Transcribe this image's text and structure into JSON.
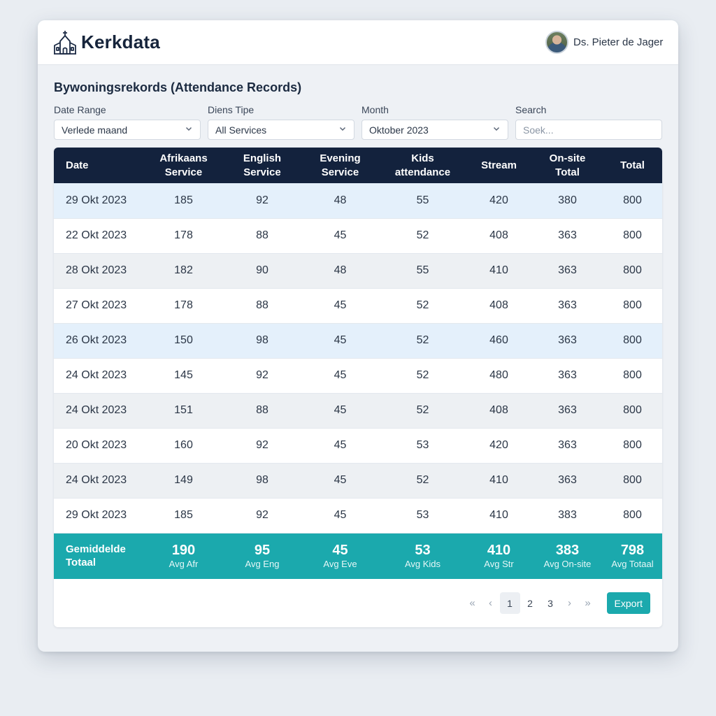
{
  "header": {
    "brand": "Kerkdata",
    "user_name": "Ds. Pieter de Jager"
  },
  "section_title": "Bywoningsrekords (Attendance Records)",
  "filters": {
    "date_range": {
      "label": "Date Range",
      "value": "Verlede maand"
    },
    "service_type": {
      "label": "Diens Tipe",
      "value": "All Services"
    },
    "month": {
      "label": "Month",
      "value": "Oktober 2023"
    },
    "search": {
      "label": "Search",
      "placeholder": "Soek..."
    }
  },
  "table": {
    "columns": [
      [
        "Date"
      ],
      [
        "Afrikaans",
        "Service"
      ],
      [
        "English",
        "Service"
      ],
      [
        "Evening",
        "Service"
      ],
      [
        "Kids",
        "attendance"
      ],
      [
        "Stream"
      ],
      [
        "On-site",
        "Total"
      ],
      [
        "Total"
      ]
    ],
    "rows": [
      {
        "style": "blue",
        "cells": [
          "29 Okt 2023",
          "185",
          "92",
          "48",
          "55",
          "420",
          "380",
          "800"
        ]
      },
      {
        "style": "white",
        "cells": [
          "22 Okt 2023",
          "178",
          "88",
          "45",
          "52",
          "408",
          "363",
          "800"
        ]
      },
      {
        "style": "grey",
        "cells": [
          "28 Okt 2023",
          "182",
          "90",
          "48",
          "55",
          "410",
          "363",
          "800"
        ]
      },
      {
        "style": "white",
        "cells": [
          "27 Okt 2023",
          "178",
          "88",
          "45",
          "52",
          "408",
          "363",
          "800"
        ]
      },
      {
        "style": "blue",
        "cells": [
          "26 Okt 2023",
          "150",
          "98",
          "45",
          "52",
          "460",
          "363",
          "800"
        ]
      },
      {
        "style": "white",
        "cells": [
          "24 Okt 2023",
          "145",
          "92",
          "45",
          "52",
          "480",
          "363",
          "800"
        ]
      },
      {
        "style": "grey",
        "cells": [
          "24 Okt 2023",
          "151",
          "88",
          "45",
          "52",
          "408",
          "363",
          "800"
        ]
      },
      {
        "style": "white",
        "cells": [
          "20 Okt 2023",
          "160",
          "92",
          "45",
          "53",
          "420",
          "363",
          "800"
        ]
      },
      {
        "style": "grey",
        "cells": [
          "24 Okt 2023",
          "149",
          "98",
          "45",
          "52",
          "410",
          "363",
          "800"
        ]
      },
      {
        "style": "white",
        "cells": [
          "29 Okt 2023",
          "185",
          "92",
          "45",
          "53",
          "410",
          "383",
          "800"
        ]
      }
    ],
    "footer": {
      "label": [
        "Gemiddelde",
        "Totaal"
      ],
      "averages": [
        {
          "value": "190",
          "label": "Avg Afr"
        },
        {
          "value": "95",
          "label": "Avg Eng"
        },
        {
          "value": "45",
          "label": "Avg Eve"
        },
        {
          "value": "53",
          "label": "Avg Kids"
        },
        {
          "value": "410",
          "label": "Avg Str"
        },
        {
          "value": "383",
          "label": "Avg On-site"
        },
        {
          "value": "798",
          "label": "Avg Totaal"
        }
      ]
    }
  },
  "pagination": {
    "first": "«",
    "prev": "‹",
    "pages": [
      "1",
      "2",
      "3"
    ],
    "current": "1",
    "next": "›",
    "last": "»",
    "export_label": "Export"
  },
  "colors": {
    "header_bg": "#13223d",
    "accent": "#1ba9ad",
    "row_highlight": "#e4f0fb"
  },
  "icons": {
    "logo": "church-icon",
    "dropdown": "chevron-down-icon"
  }
}
